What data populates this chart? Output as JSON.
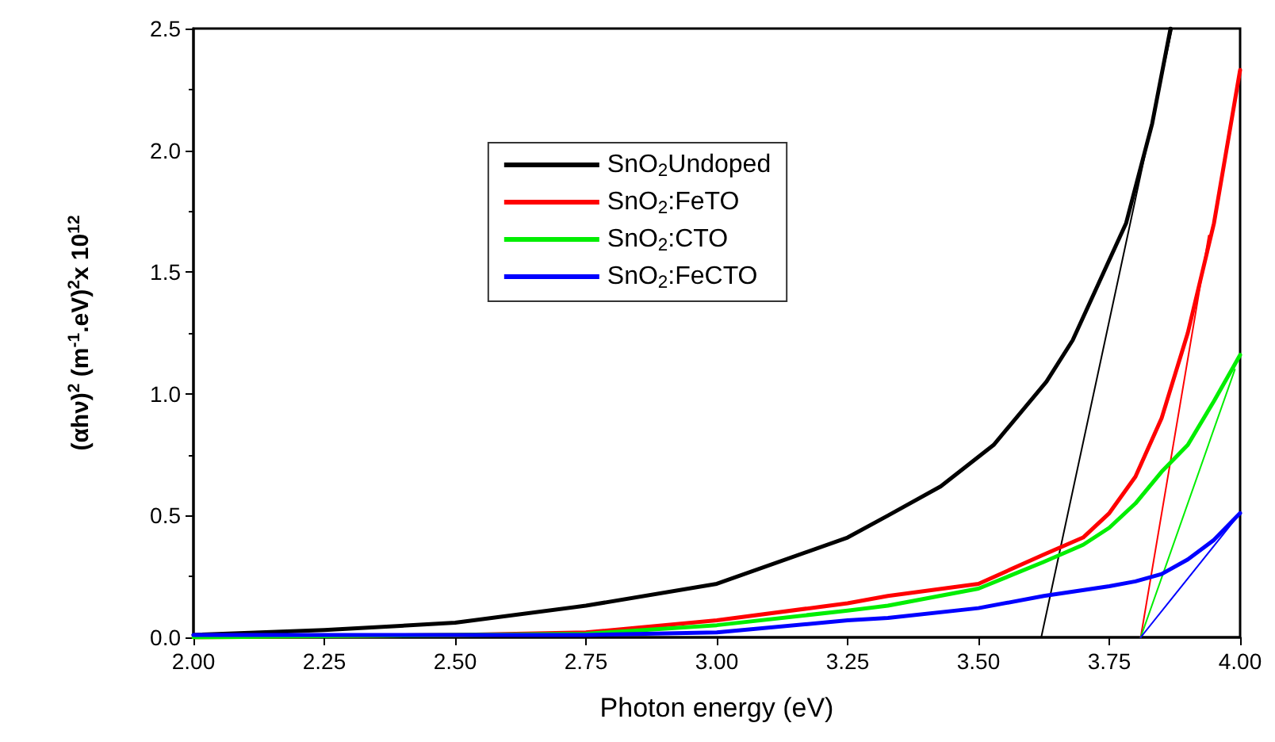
{
  "chart_data": {
    "type": "line",
    "xlabel": "Photon energy (eV)",
    "ylabel": "(αhν)$^{2}$ (m$^{-1}$.eV)$^{2}$x 10$^{12}$",
    "xlim": [
      2.0,
      4.0
    ],
    "xticks": [
      {
        "value": 2.0,
        "label": "2.00"
      },
      {
        "value": 2.25,
        "label": "2.25"
      },
      {
        "value": 2.5,
        "label": "2.50"
      },
      {
        "value": 2.75,
        "label": "2.75"
      },
      {
        "value": 3.0,
        "label": "3.00"
      },
      {
        "value": 3.25,
        "label": "3.25"
      },
      {
        "value": 3.5,
        "label": "3.50"
      },
      {
        "value": 3.75,
        "label": "3.75"
      },
      {
        "value": 4.0,
        "label": "4.00"
      }
    ],
    "ylim": [
      0,
      2.5
    ],
    "yticks": [
      {
        "value": 0,
        "label": "0.0"
      },
      {
        "value": 0.5,
        "label": "0.5"
      },
      {
        "value": 1.0,
        "label": "1.0"
      },
      {
        "value": 1.5,
        "label": "1.5"
      },
      {
        "value": 2.0,
        "label": "2.0"
      },
      {
        "value": 2.5,
        "label": "2.5"
      }
    ],
    "legend": "top",
    "grid": false,
    "marker": "none",
    "line_style": "solid",
    "series": [
      {
        "name": "SnO$_{2}$Undoped",
        "color": "#000000",
        "x": [
          2.0,
          2.25,
          2.5,
          2.75,
          3.0,
          3.25,
          3.327,
          3.428,
          3.529,
          3.63,
          3.68,
          3.731,
          3.782,
          3.832,
          3.867
        ],
        "values": [
          0.01,
          0.03,
          0.06,
          0.13,
          0.22,
          0.41,
          0.5,
          0.62,
          0.79,
          1.05,
          1.22,
          1.46,
          1.7,
          2.11,
          2.5
        ]
      },
      {
        "name": "SnO$_{2}$:FeTO",
        "color": "#ff0000",
        "x": [
          2.0,
          2.25,
          2.5,
          2.75,
          3.0,
          3.25,
          3.327,
          3.5,
          3.625,
          3.7,
          3.75,
          3.8,
          3.85,
          3.9,
          3.95,
          4.0
        ],
        "values": [
          0.0,
          0.005,
          0.01,
          0.02,
          0.07,
          0.14,
          0.17,
          0.22,
          0.34,
          0.41,
          0.51,
          0.66,
          0.9,
          1.25,
          1.7,
          2.33
        ]
      },
      {
        "name": "SnO$_{2}$:CTO",
        "color": "#00ee00",
        "x": [
          2.0,
          2.25,
          2.5,
          2.75,
          3.0,
          3.25,
          3.327,
          3.5,
          3.625,
          3.7,
          3.75,
          3.8,
          3.85,
          3.9,
          3.95,
          4.0
        ],
        "values": [
          0.0,
          0.005,
          0.01,
          0.015,
          0.05,
          0.11,
          0.13,
          0.2,
          0.31,
          0.38,
          0.45,
          0.55,
          0.68,
          0.79,
          0.97,
          1.16
        ]
      },
      {
        "name": "SnO$_{2}$:FeCTO",
        "color": "#0000ff",
        "x": [
          2.0,
          2.25,
          2.5,
          2.75,
          3.0,
          3.25,
          3.327,
          3.5,
          3.625,
          3.75,
          3.8,
          3.85,
          3.9,
          3.95,
          4.0
        ],
        "values": [
          0.01,
          0.01,
          0.01,
          0.01,
          0.02,
          0.07,
          0.08,
          0.12,
          0.17,
          0.21,
          0.23,
          0.26,
          0.32,
          0.4,
          0.51
        ]
      },
      {
        "color": "#000000",
        "x": [
          3.62,
          3.87
        ],
        "values": [
          0,
          2.5
        ]
      },
      {
        "color": "#ff0000",
        "x": [
          3.81,
          3.94
        ],
        "values": [
          0,
          1.65
        ]
      },
      {
        "color": "#00ee00",
        "x": [
          3.81,
          3.99
        ],
        "values": [
          0,
          1.1
        ]
      },
      {
        "color": "#0000ff",
        "x": [
          3.81,
          4.0
        ],
        "values": [
          0,
          0.51
        ]
      }
    ]
  }
}
